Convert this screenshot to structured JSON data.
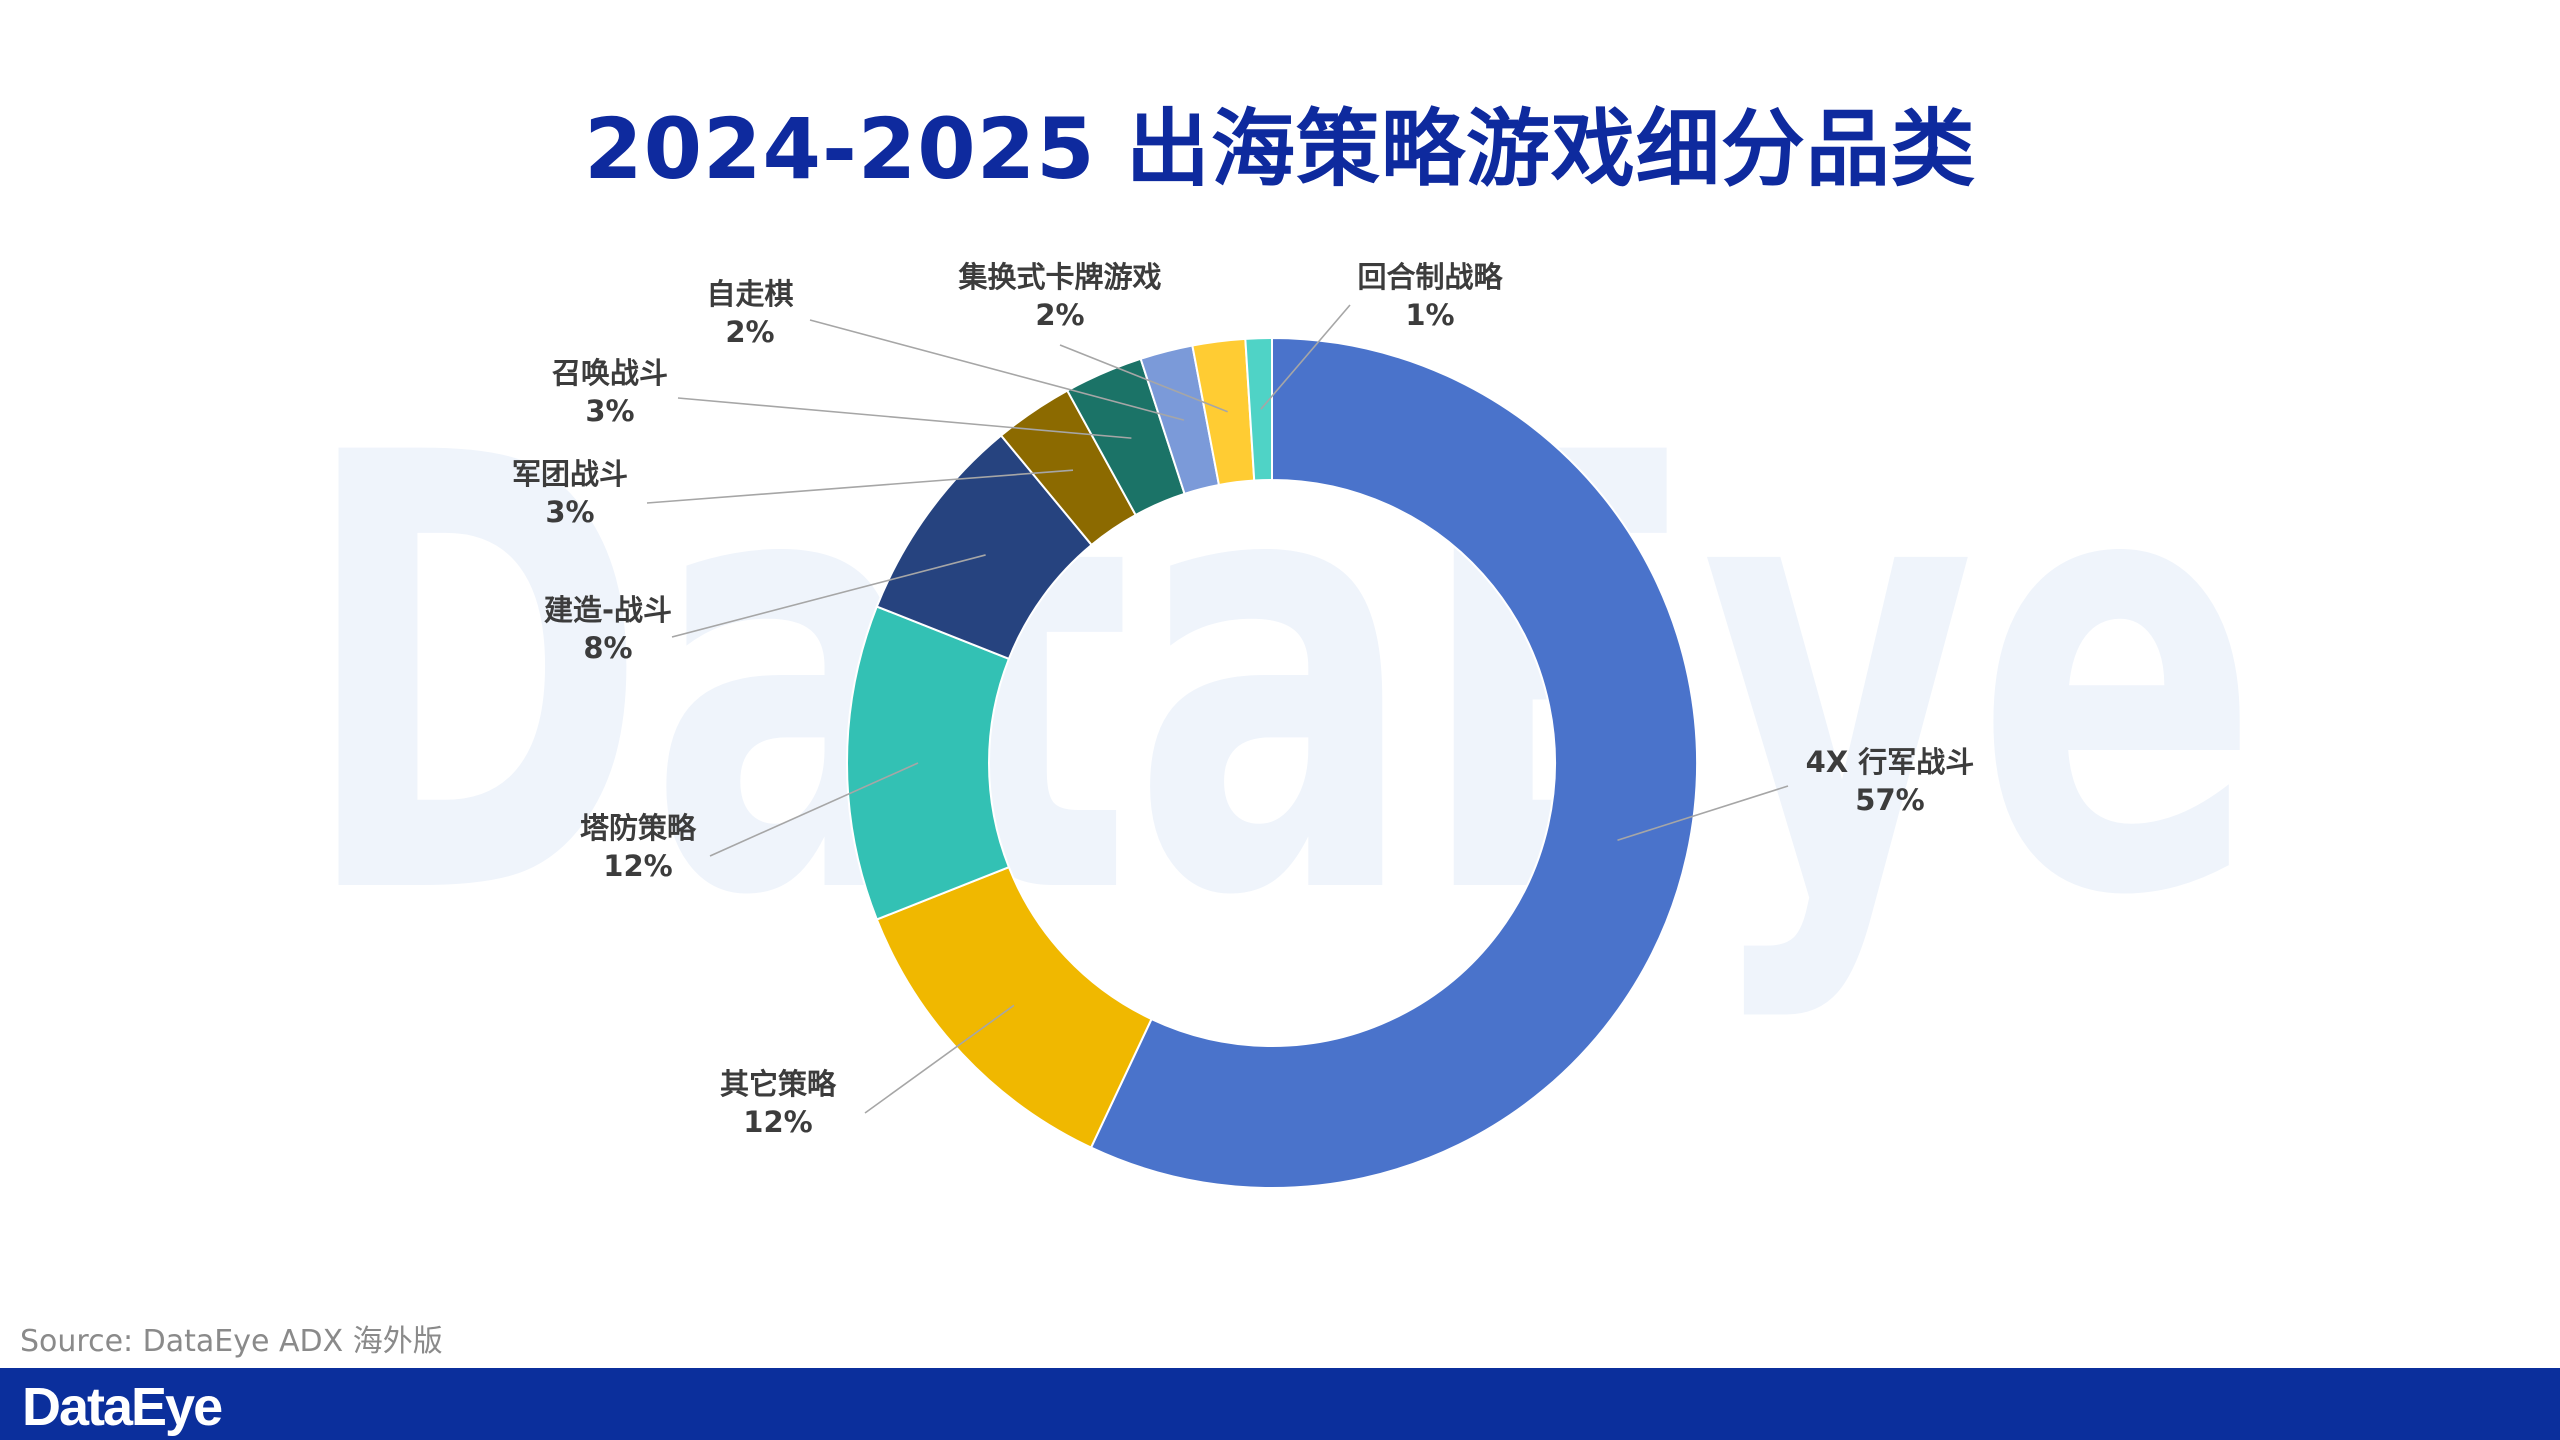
{
  "title": "2024-2025 出海策略游戏细分品类",
  "watermark": "DataEye",
  "source": "Source: DataEye ADX 海外版",
  "footer_logo": "DataEye",
  "colors": {
    "title": "#0e2a9e",
    "footer_bg": "#0b2f9c"
  },
  "chart_data": {
    "type": "pie",
    "variant": "donut",
    "title": "2024-2025 出海策略游戏细分品类",
    "start": "12 o'clock",
    "direction": "clockwise",
    "slices": [
      {
        "label": "4X 行军战斗",
        "value": 57,
        "percent_label": "57%",
        "color": "#4a73cb"
      },
      {
        "label": "其它策略",
        "value": 12,
        "percent_label": "12%",
        "color": "#f0b800"
      },
      {
        "label": "塔防策略",
        "value": 12,
        "percent_label": "12%",
        "color": "#33c1b4"
      },
      {
        "label": "建造-战斗",
        "value": 8,
        "percent_label": "8%",
        "color": "#26437f"
      },
      {
        "label": "军团战斗",
        "value": 3,
        "percent_label": "3%",
        "color": "#8c6a00"
      },
      {
        "label": "召唤战斗",
        "value": 3,
        "percent_label": "3%",
        "color": "#1b7367"
      },
      {
        "label": "自走棋",
        "value": 2,
        "percent_label": "2%",
        "color": "#7b9ad9"
      },
      {
        "label": "集换式卡牌游戏",
        "value": 2,
        "percent_label": "2%",
        "color": "#ffcc33"
      },
      {
        "label": "回合制战略",
        "value": 1,
        "percent_label": "1%",
        "color": "#4fd3c6"
      }
    ]
  }
}
